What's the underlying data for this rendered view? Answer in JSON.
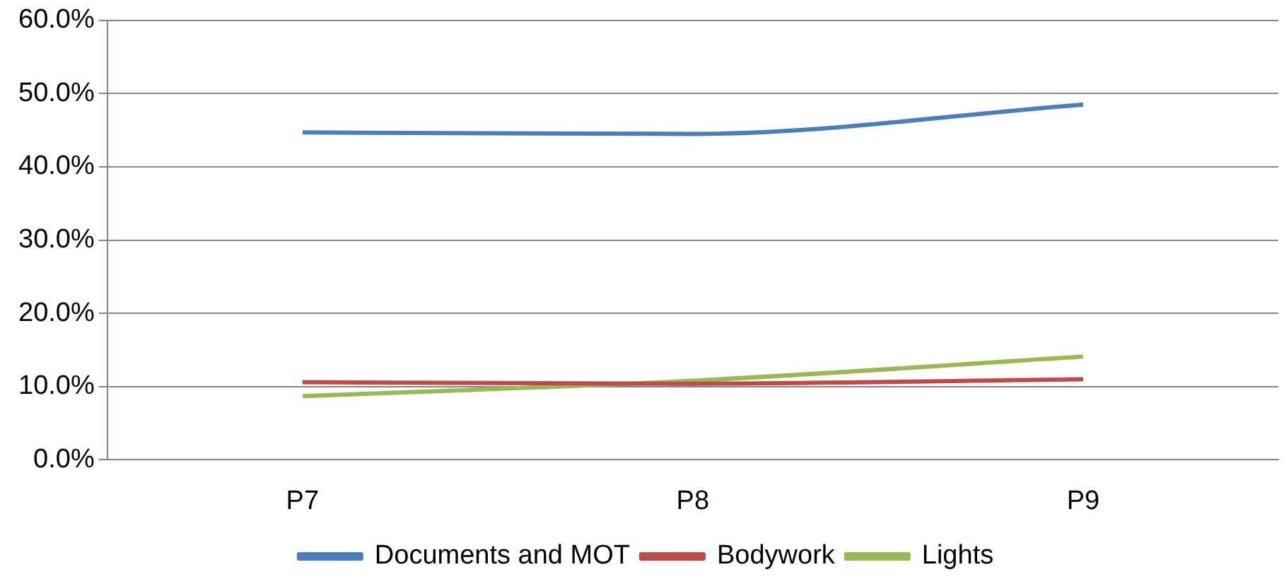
{
  "chart_data": {
    "type": "line",
    "categories": [
      "P7",
      "P8",
      "P9"
    ],
    "series": [
      {
        "name": "Documents and MOT",
        "color": "#4a7ebb",
        "values": [
          44.7,
          44.5,
          48.5
        ]
      },
      {
        "name": "Bodywork",
        "color": "#be4b48",
        "values": [
          10.6,
          10.4,
          11.0
        ]
      },
      {
        "name": "Lights",
        "color": "#98b954",
        "values": [
          8.7,
          10.8,
          14.1
        ]
      }
    ],
    "ylim": [
      0,
      60
    ],
    "yticks": [
      {
        "value": 0,
        "label": "0.0%"
      },
      {
        "value": 10,
        "label": "10.0%"
      },
      {
        "value": 20,
        "label": "20.0%"
      },
      {
        "value": 30,
        "label": "30.0%"
      },
      {
        "value": 40,
        "label": "40.0%"
      },
      {
        "value": 50,
        "label": "50.0%"
      },
      {
        "value": 60,
        "label": "60.0%"
      }
    ],
    "grid": "y",
    "legend": "bottom",
    "marker": "none",
    "line_style": "solid"
  }
}
